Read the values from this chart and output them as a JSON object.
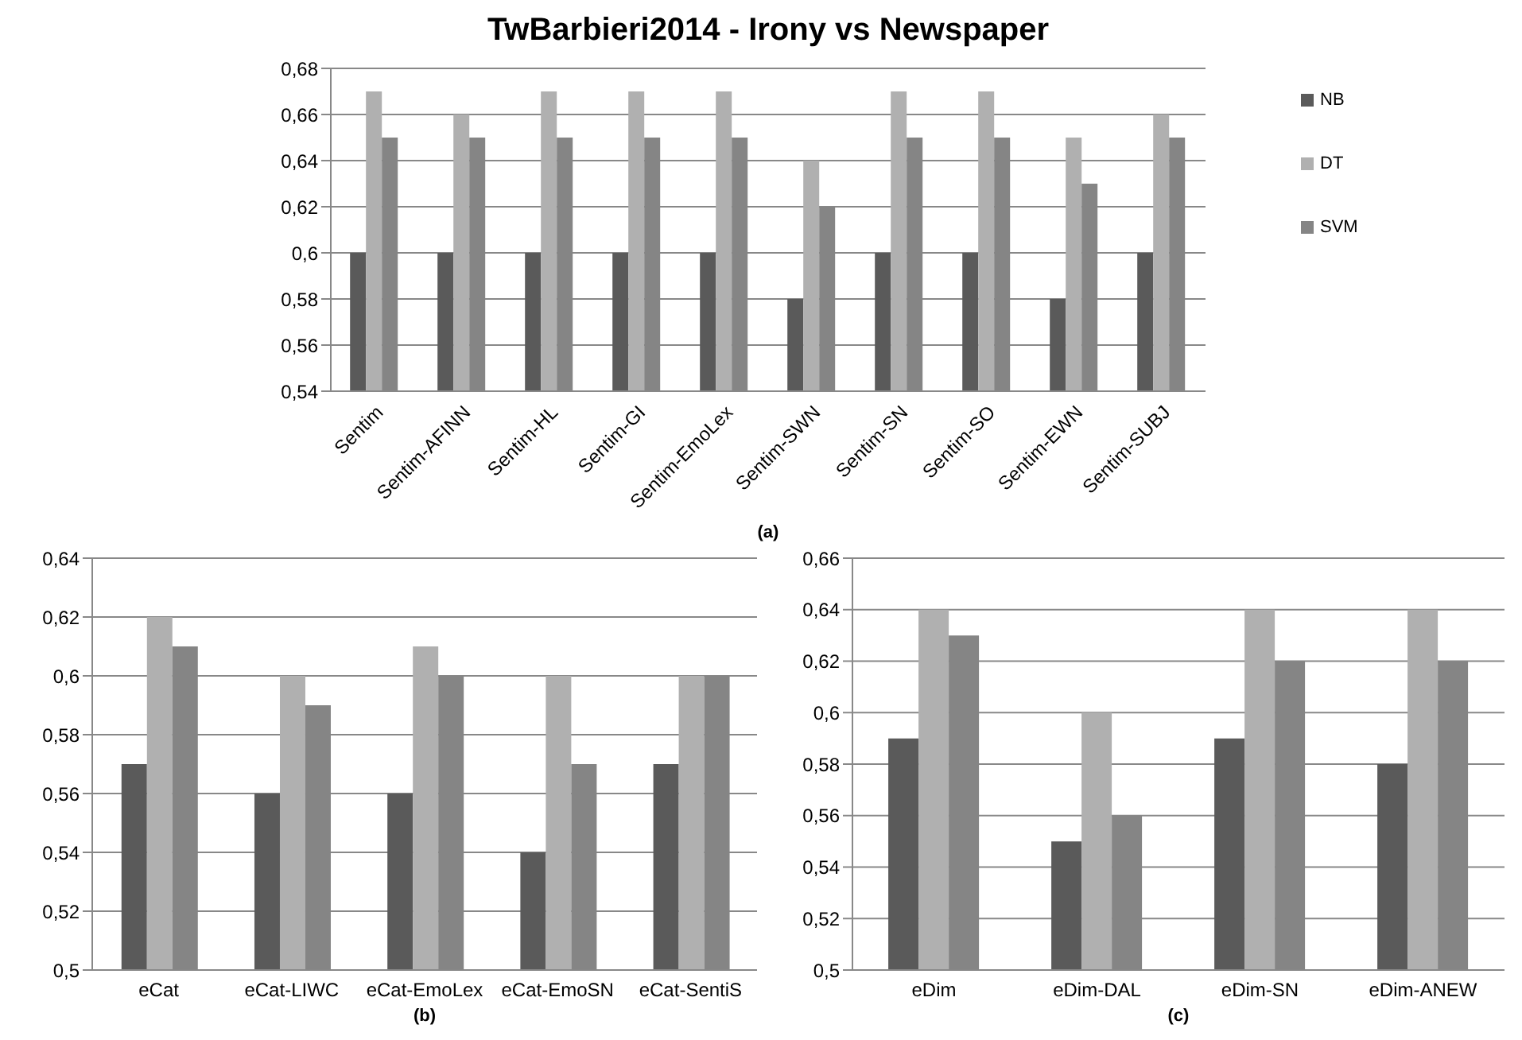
{
  "chart_data": [
    {
      "type": "bar",
      "title": "TwBarbieri2014 - Irony vs Newspaper",
      "xlabel": "(a)",
      "categories": [
        "Sentim",
        "Sentim-AFINN",
        "Sentim-HL",
        "Sentim-GI",
        "Sentim-EmoLex",
        "Sentim-SWN",
        "Sentim-SN",
        "Sentim-SO",
        "Sentim-EWN",
        "Sentim-SUBJ"
      ],
      "series": [
        {
          "name": "NB",
          "color": "#5a5a5a",
          "values": [
            0.6,
            0.6,
            0.6,
            0.6,
            0.6,
            0.58,
            0.6,
            0.6,
            0.58,
            0.6
          ]
        },
        {
          "name": "DT",
          "color": "#b0b0b0",
          "values": [
            0.67,
            0.66,
            0.67,
            0.67,
            0.67,
            0.64,
            0.67,
            0.67,
            0.65,
            0.66
          ]
        },
        {
          "name": "SVM",
          "color": "#858585",
          "values": [
            0.65,
            0.65,
            0.65,
            0.65,
            0.65,
            0.62,
            0.65,
            0.65,
            0.63,
            0.65
          ]
        }
      ],
      "ylim": [
        0.54,
        0.68
      ],
      "yticks": [
        {
          "value": 0.54,
          "label": "0,54"
        },
        {
          "value": 0.56,
          "label": "0,56"
        },
        {
          "value": 0.58,
          "label": "0,58"
        },
        {
          "value": 0.6,
          "label": "0,6"
        },
        {
          "value": 0.62,
          "label": "0,62"
        },
        {
          "value": 0.64,
          "label": "0,64"
        },
        {
          "value": 0.66,
          "label": "0,66"
        },
        {
          "value": 0.68,
          "label": "0,68"
        }
      ],
      "grid": "y",
      "legend": "right"
    },
    {
      "type": "bar",
      "xlabel": "(b)",
      "categories": [
        "eCat",
        "eCat-LIWC",
        "eCat-EmoLex",
        "eCat-EmoSN",
        "eCat-SentiS"
      ],
      "series": [
        {
          "color": "#5a5a5a",
          "values": [
            0.57,
            0.56,
            0.56,
            0.54,
            0.57
          ]
        },
        {
          "color": "#b0b0b0",
          "values": [
            0.62,
            0.6,
            0.61,
            0.6,
            0.6
          ]
        },
        {
          "color": "#858585",
          "values": [
            0.61,
            0.59,
            0.6,
            0.57,
            0.6
          ]
        }
      ],
      "ylim": [
        0.5,
        0.64
      ],
      "yticks": [
        {
          "value": 0.5,
          "label": "0,5"
        },
        {
          "value": 0.52,
          "label": "0,52"
        },
        {
          "value": 0.54,
          "label": "0,54"
        },
        {
          "value": 0.56,
          "label": "0,56"
        },
        {
          "value": 0.58,
          "label": "0,58"
        },
        {
          "value": 0.6,
          "label": "0,6"
        },
        {
          "value": 0.62,
          "label": "0,62"
        },
        {
          "value": 0.64,
          "label": "0,64"
        }
      ],
      "grid": "y",
      "legend": false
    },
    {
      "type": "bar",
      "xlabel": "(c)",
      "categories": [
        "eDim",
        "eDim-DAL",
        "eDim-SN",
        "eDim-ANEW"
      ],
      "series": [
        {
          "color": "#5a5a5a",
          "values": [
            0.59,
            0.55,
            0.59,
            0.58
          ]
        },
        {
          "color": "#b0b0b0",
          "values": [
            0.64,
            0.6,
            0.64,
            0.64
          ]
        },
        {
          "color": "#858585",
          "values": [
            0.63,
            0.56,
            0.62,
            0.62
          ]
        }
      ],
      "ylim": [
        0.5,
        0.66
      ],
      "yticks": [
        {
          "value": 0.5,
          "label": "0,5"
        },
        {
          "value": 0.52,
          "label": "0,52"
        },
        {
          "value": 0.54,
          "label": "0,54"
        },
        {
          "value": 0.56,
          "label": "0,56"
        },
        {
          "value": 0.58,
          "label": "0,58"
        },
        {
          "value": 0.6,
          "label": "0,6"
        },
        {
          "value": 0.62,
          "label": "0,62"
        },
        {
          "value": 0.64,
          "label": "0,64"
        },
        {
          "value": 0.66,
          "label": "0,66"
        }
      ],
      "grid": "y",
      "legend": false
    }
  ]
}
